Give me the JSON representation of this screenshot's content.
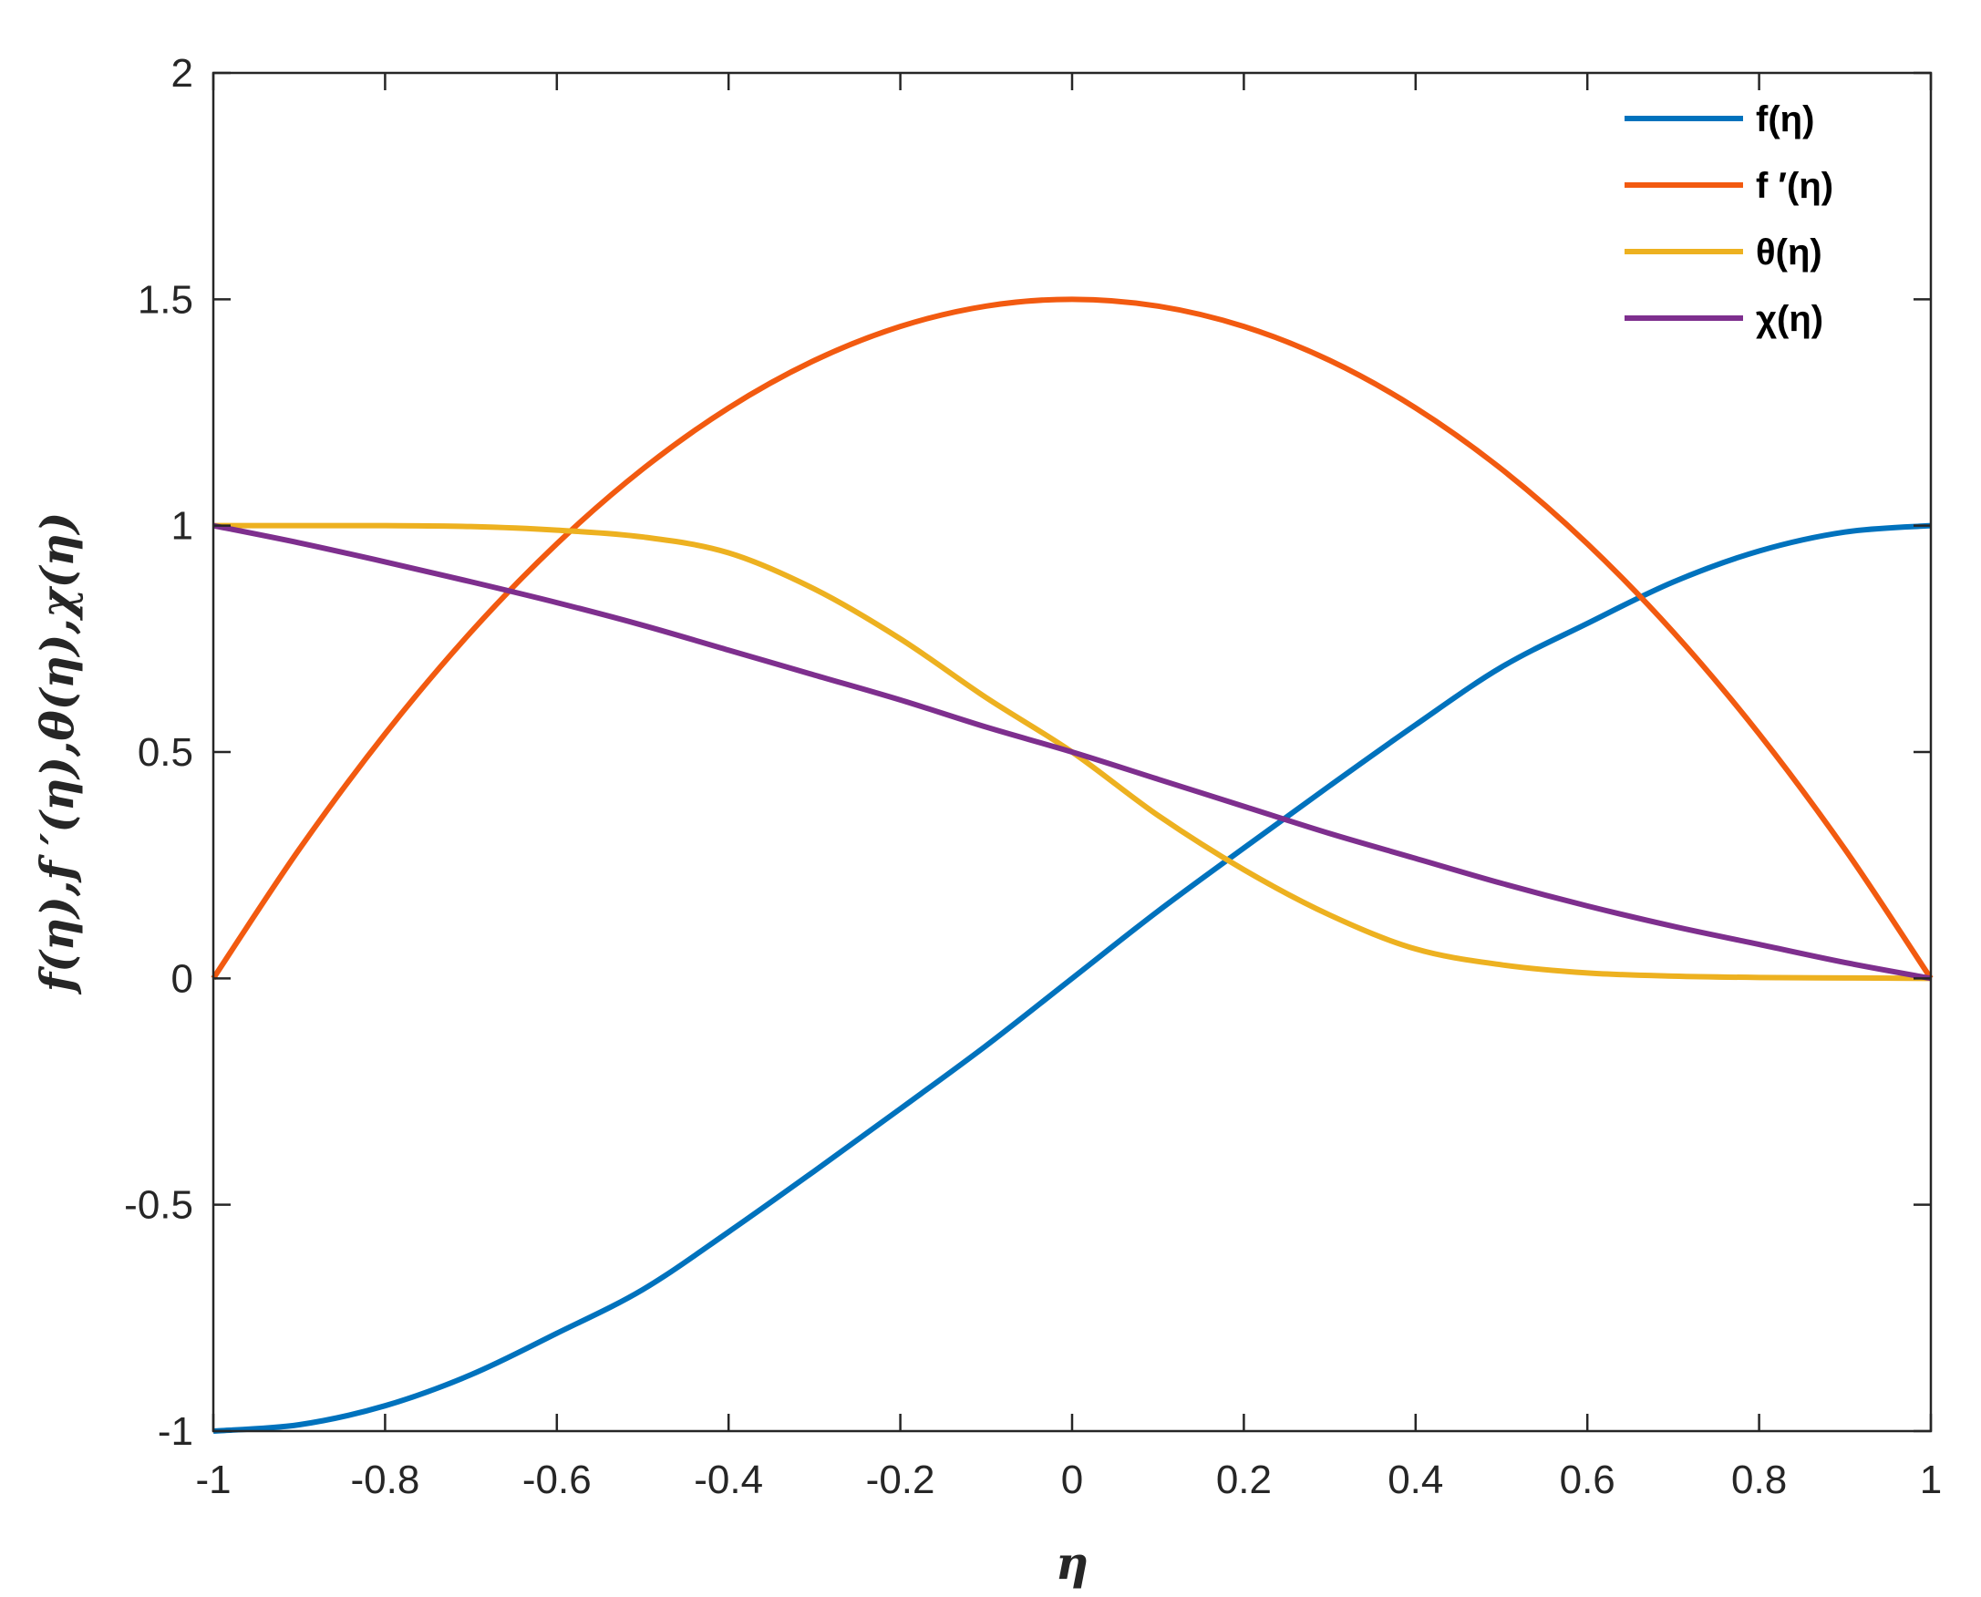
{
  "chart_data": {
    "type": "line",
    "xlabel": "η",
    "ylabel": "f(η),f ′(η),θ(η),χ(η)",
    "xlim": [
      -1,
      1
    ],
    "ylim": [
      -1,
      2
    ],
    "xticks": [
      -1,
      -0.8,
      -0.6,
      -0.4,
      -0.2,
      0,
      0.2,
      0.4,
      0.6,
      0.8,
      1
    ],
    "xtick_labels": [
      "-1",
      "-0.8",
      "-0.6",
      "-0.4",
      "-0.2",
      "0",
      "0.2",
      "0.4",
      "0.6",
      "0.8",
      "1"
    ],
    "yticks": [
      -1,
      -0.5,
      0,
      0.5,
      1,
      1.5,
      2
    ],
    "ytick_labels": [
      "-1",
      "-0.5",
      "0",
      "0.5",
      "1",
      "1.5",
      "2"
    ],
    "grid": false,
    "legend_position": "top-right",
    "x": [
      -1,
      -0.9,
      -0.8,
      -0.7,
      -0.6,
      -0.5,
      -0.4,
      -0.3,
      -0.2,
      -0.1,
      0,
      0.1,
      0.2,
      0.3,
      0.4,
      0.5,
      0.6,
      0.7,
      0.8,
      0.9,
      1
    ],
    "series": [
      {
        "name": "f(η)",
        "color": "#0072BD",
        "values": [
          -1.0,
          -0.9859,
          -0.944,
          -0.8755,
          -0.784,
          -0.6875,
          -0.56,
          -0.4255,
          -0.288,
          -0.1485,
          0.0,
          0.1485,
          0.288,
          0.4255,
          0.56,
          0.6875,
          0.784,
          0.8755,
          0.944,
          0.9859,
          1.0
        ]
      },
      {
        "name": "f ′(η)",
        "color": "#F25A10",
        "values": [
          0.0,
          0.285,
          0.54,
          0.765,
          0.96,
          1.125,
          1.26,
          1.365,
          1.44,
          1.485,
          1.5,
          1.485,
          1.44,
          1.365,
          1.26,
          1.125,
          0.96,
          0.765,
          0.54,
          0.285,
          0.0
        ]
      },
      {
        "name": "θ(η)",
        "color": "#EDB120",
        "values": [
          1.0,
          1.0,
          1.0,
          0.998,
          0.99,
          0.975,
          0.94,
          0.86,
          0.75,
          0.62,
          0.5,
          0.36,
          0.24,
          0.14,
          0.065,
          0.03,
          0.012,
          0.005,
          0.002,
          0.001,
          0.0
        ]
      },
      {
        "name": "χ(η)",
        "color": "#7E2F8E",
        "values": [
          1.0,
          0.962,
          0.92,
          0.876,
          0.83,
          0.78,
          0.725,
          0.67,
          0.615,
          0.555,
          0.5,
          0.44,
          0.38,
          0.32,
          0.265,
          0.21,
          0.16,
          0.115,
          0.075,
          0.035,
          0.0
        ]
      }
    ]
  }
}
